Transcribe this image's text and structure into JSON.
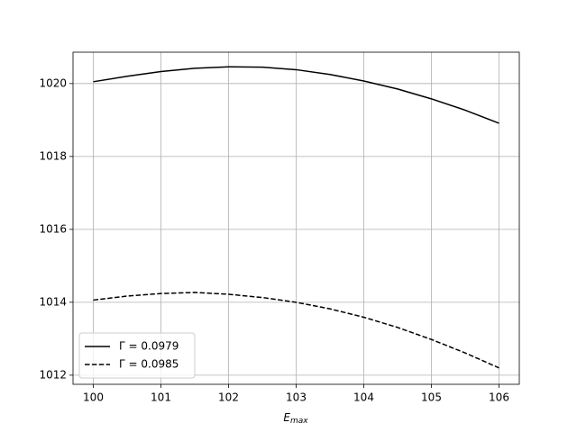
{
  "chart_data": {
    "type": "line",
    "xlabel": "E",
    "xlabel_sub": "max",
    "x": [
      100,
      100.5,
      101,
      101.5,
      102,
      102.5,
      103,
      103.5,
      104,
      104.5,
      105,
      105.5,
      106
    ],
    "series": [
      {
        "name": "Γ = 0.0979",
        "color": "#000000",
        "linestyle": "solid",
        "values": [
          1020.05,
          1020.2,
          1020.33,
          1020.42,
          1020.46,
          1020.45,
          1020.38,
          1020.25,
          1020.07,
          1019.85,
          1019.58,
          1019.27,
          1018.91
        ]
      },
      {
        "name": "Γ = 0.0985",
        "color": "#000000",
        "linestyle": "dashed",
        "values": [
          1014.06,
          1014.17,
          1014.24,
          1014.27,
          1014.22,
          1014.13,
          1014.0,
          1013.82,
          1013.59,
          1013.31,
          1012.98,
          1012.61,
          1012.2
        ]
      }
    ],
    "xlim": [
      99.7,
      106.3
    ],
    "xticks": [
      100,
      101,
      102,
      103,
      104,
      105,
      106
    ],
    "ylim": [
      1011.75,
      1020.86
    ],
    "yticks": [
      1012,
      1014,
      1016,
      1018,
      1020
    ],
    "grid": true,
    "legend": "lower left"
  }
}
